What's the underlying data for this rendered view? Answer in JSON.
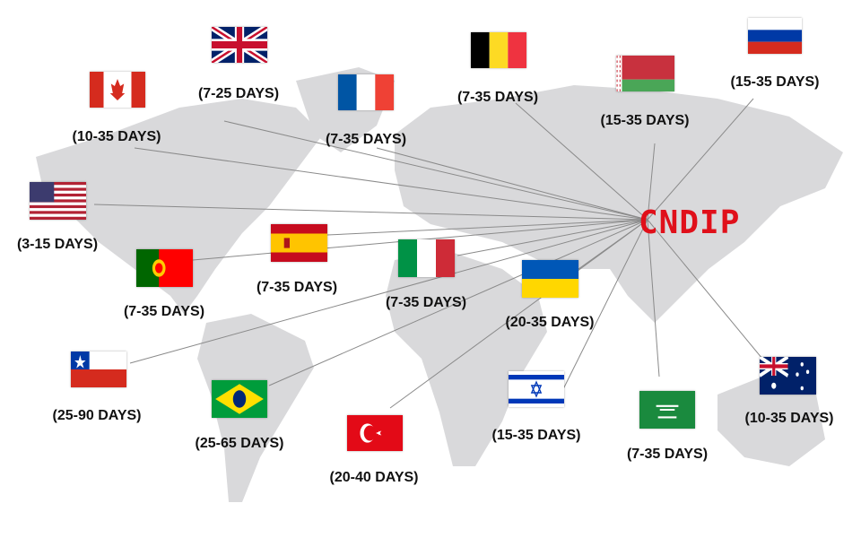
{
  "hub": {
    "label": "CNDIP",
    "color": "#e0101a"
  },
  "destinations": [
    {
      "country": "United Kingdom",
      "flag": "uk",
      "days": "(7-25 DAYS)"
    },
    {
      "country": "Canada",
      "flag": "ca",
      "days": "(10-35 DAYS)"
    },
    {
      "country": "France",
      "flag": "fr",
      "days": "(7-35 DAYS)"
    },
    {
      "country": "Belgium",
      "flag": "be",
      "days": "(7-35 DAYS)"
    },
    {
      "country": "Belarus",
      "flag": "by",
      "days": "(15-35 DAYS)"
    },
    {
      "country": "Russia",
      "flag": "ru",
      "days": "(15-35 DAYS)"
    },
    {
      "country": "United States",
      "flag": "us",
      "days": "(3-15 DAYS)"
    },
    {
      "country": "Spain",
      "flag": "es",
      "days": "(7-35 DAYS)"
    },
    {
      "country": "Portugal",
      "flag": "pt",
      "days": "(7-35 DAYS)"
    },
    {
      "country": "Italy",
      "flag": "it",
      "days": "(7-35 DAYS)"
    },
    {
      "country": "Ukraine",
      "flag": "ua",
      "days": "(20-35 DAYS)"
    },
    {
      "country": "Chile",
      "flag": "cl",
      "days": "(25-90 DAYS)"
    },
    {
      "country": "Brazil",
      "flag": "br",
      "days": "(25-65 DAYS)"
    },
    {
      "country": "Turkey",
      "flag": "tr",
      "days": "(20-40 DAYS)"
    },
    {
      "country": "Israel",
      "flag": "il",
      "days": "(15-35 DAYS)"
    },
    {
      "country": "Saudi Arabia",
      "flag": "sa",
      "days": "(7-35 DAYS)"
    },
    {
      "country": "Australia",
      "flag": "au",
      "days": "(10-35 DAYS)"
    }
  ],
  "colors": {
    "land": "#d9d9db",
    "lines": "#8a8a8a"
  }
}
